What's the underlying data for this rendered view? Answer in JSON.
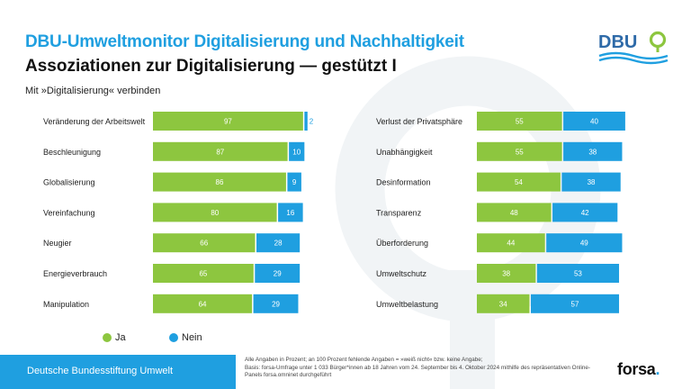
{
  "header": {
    "title": "DBU-Umweltmonitor Digitalisierung und Nachhaltigkeit",
    "subtitle": "Assoziationen zur Digitalisierung — gestützt I",
    "question": "Mit »Digitalisierung« verbinden",
    "logo_text": "DBU"
  },
  "colors": {
    "ja": "#8dc63f",
    "nein": "#1f9fe0",
    "accent": "#1f9fe0"
  },
  "chart_data": {
    "type": "bar",
    "stacked": true,
    "orientation": "horizontal",
    "title": "Assoziationen zur Digitalisierung — gestützt I",
    "legend": [
      "Ja",
      "Nein"
    ],
    "panels": [
      {
        "categories": [
          "Veränderung der Arbeitswelt",
          "Beschleunigung",
          "Globalisierung",
          "Vereinfachung",
          "Neugier",
          "Energieverbrauch",
          "Manipulation"
        ],
        "series": [
          {
            "name": "Ja",
            "values": [
              97,
              87,
              86,
              80,
              66,
              65,
              64
            ]
          },
          {
            "name": "Nein",
            "values": [
              2,
              10,
              9,
              16,
              28,
              29,
              29
            ]
          }
        ]
      },
      {
        "categories": [
          "Verlust der Privatsphäre",
          "Unabhängigkeit",
          "Desinformation",
          "Transparenz",
          "Überforderung",
          "Umweltschutz",
          "Umweltbelastung"
        ],
        "series": [
          {
            "name": "Ja",
            "values": [
              55,
              55,
              54,
              48,
              44,
              38,
              34
            ]
          },
          {
            "name": "Nein",
            "values": [
              40,
              38,
              38,
              42,
              49,
              53,
              57
            ]
          }
        ]
      }
    ]
  },
  "footer": {
    "org": "Deutsche Bundesstiftung Umwelt",
    "note_1": "Alle Angaben in Prozent; an 100 Prozent fehlende Angaben = »weiß nicht« bzw. keine Angabe;",
    "note_2": "Basis: forsa-Umfrage unter 1 033 Bürger*innen ab 18 Jahren vom 24. September bis 4. Oktober 2024 mithilfe des repräsentativen Online-Panels forsa.omninet durchgeführt",
    "brand": "forsa",
    "brand_dot": "."
  }
}
